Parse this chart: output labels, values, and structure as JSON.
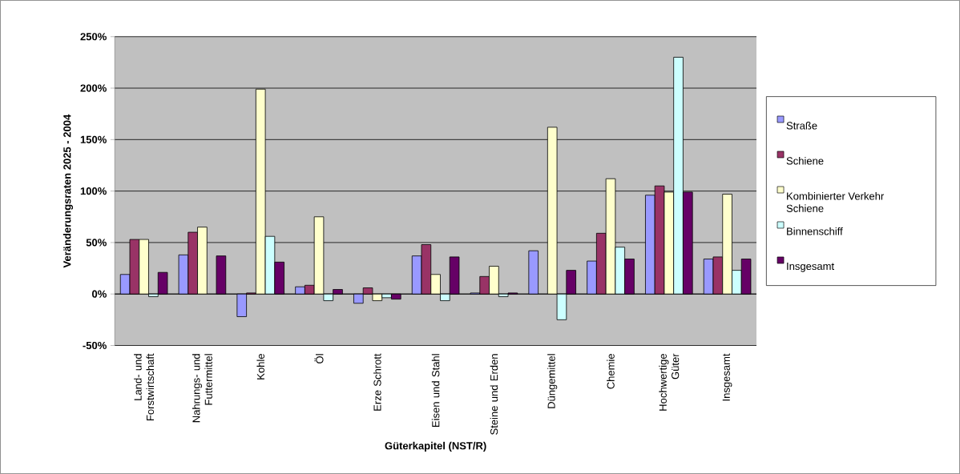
{
  "chart_data": {
    "type": "bar",
    "xlabel": "Güterkapitel (NST/R)",
    "ylabel": "Veränderungsraten 2025 - 2004",
    "categories": [
      "Land- und Forstwirtschaft",
      "Nahrungs- und Futtermittel",
      "Kohle",
      "Öl",
      "Erze Schrott",
      "Eisen und Stahl",
      "Steine und Erden",
      "Düngemittel",
      "Chemie",
      "Hochwertige Güter",
      "Insgesamt"
    ],
    "series": [
      {
        "name": "Straße",
        "color": "#9999ff",
        "values": [
          19,
          38,
          -22,
          7,
          -9,
          37,
          1,
          42,
          32,
          96,
          34
        ]
      },
      {
        "name": "Schiene",
        "color": "#993366",
        "values": [
          53,
          60,
          1,
          8.5,
          6,
          48,
          17,
          null,
          59,
          105,
          36
        ]
      },
      {
        "name": "Kombinierter Verkehr Schiene",
        "color": "#ffffcc",
        "values": [
          53,
          65,
          199,
          75,
          -6.5,
          19,
          27,
          162,
          112,
          99,
          97
        ]
      },
      {
        "name": "Binnenschiff",
        "color": "#ccffff",
        "values": [
          -2.6,
          null,
          56,
          -6.5,
          -3.6,
          -6.5,
          -2.6,
          -25,
          45.5,
          230,
          23
        ]
      },
      {
        "name": "Insgesamt",
        "color": "#660066",
        "values": [
          21,
          37,
          31,
          4.4,
          -5,
          36,
          1,
          23,
          34,
          99,
          34
        ]
      }
    ],
    "ylim": [
      -50,
      250
    ],
    "yticks": [
      {
        "value": -50,
        "label": "-50%"
      },
      {
        "value": 0,
        "label": "0%"
      },
      {
        "value": 50,
        "label": "50%"
      },
      {
        "value": 100,
        "label": "100%"
      },
      {
        "value": 150,
        "label": "150%"
      },
      {
        "value": 200,
        "label": "200%"
      },
      {
        "value": 250,
        "label": "250%"
      }
    ],
    "grid": "y",
    "legend": "right"
  }
}
